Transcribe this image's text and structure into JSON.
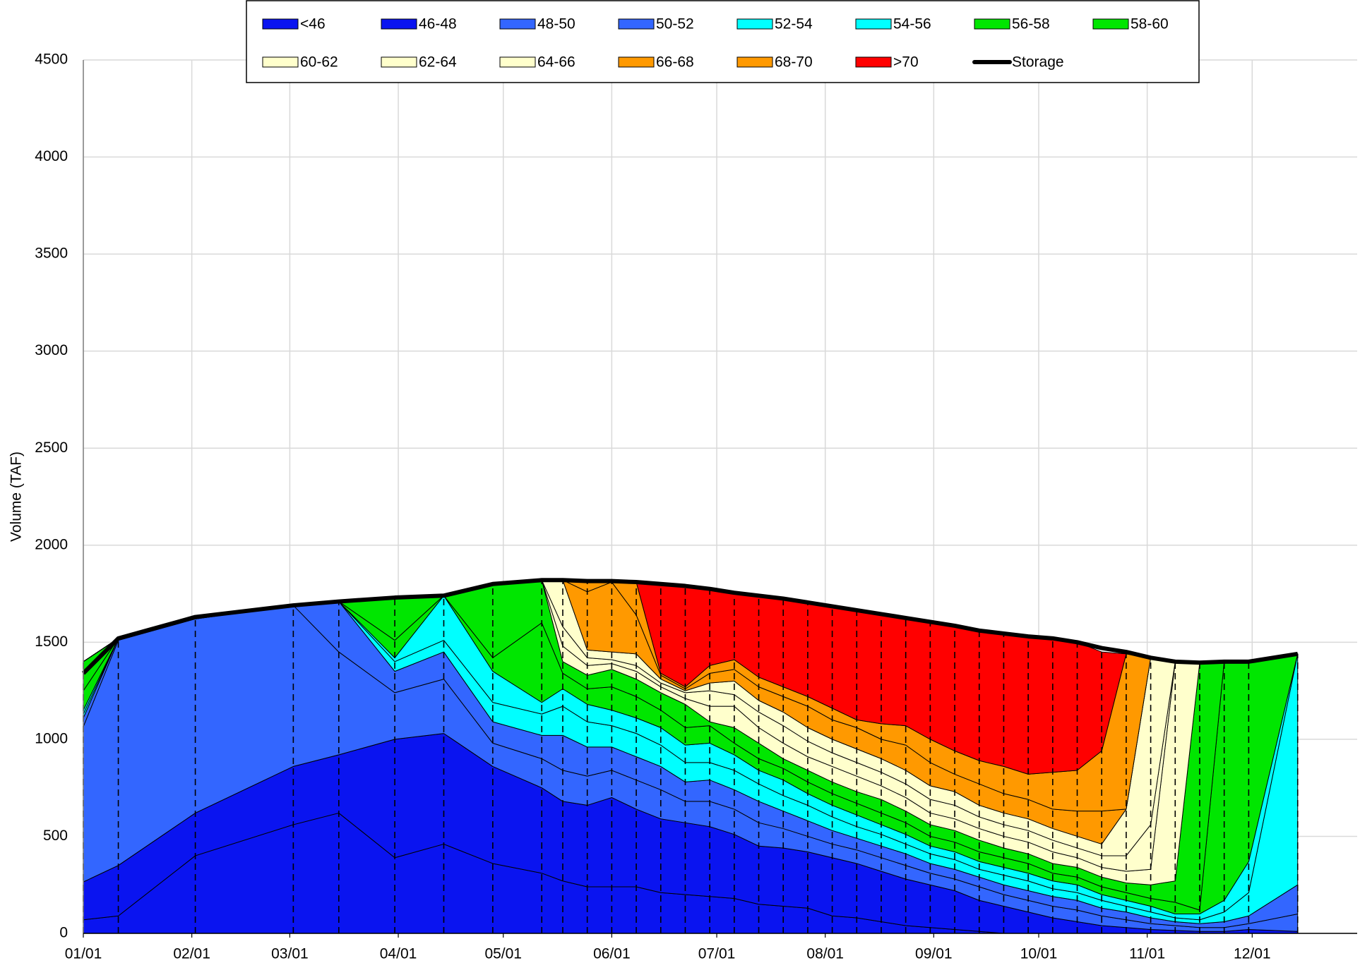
{
  "chart_data": {
    "type": "stacked_area",
    "y_label": "Volume (TAF)",
    "x": [
      "01/01",
      "01/11",
      "02/02",
      "03/02",
      "03/15",
      "03/31",
      "04/14",
      "04/28",
      "05/12",
      "05/18",
      "05/25",
      "06/01",
      "06/08",
      "06/15",
      "06/22",
      "06/29",
      "07/06",
      "07/13",
      "07/20",
      "07/27",
      "08/03",
      "08/10",
      "08/17",
      "08/24",
      "08/31",
      "09/07",
      "09/14",
      "09/21",
      "09/28",
      "10/05",
      "10/12",
      "10/19",
      "10/26",
      "11/02",
      "11/09",
      "11/16",
      "11/23",
      "11/30",
      "12/14"
    ],
    "xlim": [
      "01/01",
      "12/31"
    ],
    "xticks": [
      "01/01",
      "02/01",
      "03/01",
      "04/01",
      "05/01",
      "06/01",
      "07/01",
      "08/01",
      "09/01",
      "10/01",
      "11/01",
      "12/01"
    ],
    "ylim": [
      0,
      4500
    ],
    "yticks": [
      0,
      500,
      1000,
      1500,
      2000,
      2500,
      3000,
      3500,
      4000,
      4500
    ],
    "grid": true,
    "legend": "top",
    "series": [
      {
        "name": "<46",
        "color": "#0a14f0",
        "values": [
          70,
          90,
          400,
          560,
          620,
          390,
          460,
          360,
          310,
          270,
          240,
          240,
          240,
          210,
          200,
          190,
          180,
          150,
          140,
          130,
          90,
          80,
          60,
          40,
          30,
          20,
          10,
          0,
          0,
          0,
          0,
          0,
          0,
          0,
          0,
          0,
          0,
          0,
          0
        ]
      },
      {
        "name": "46-48",
        "color": "#0a14f0",
        "values": [
          195,
          260,
          220,
          300,
          300,
          610,
          570,
          500,
          440,
          410,
          420,
          460,
          400,
          380,
          370,
          360,
          330,
          300,
          300,
          290,
          300,
          280,
          260,
          240,
          220,
          200,
          160,
          140,
          110,
          80,
          60,
          40,
          30,
          20,
          15,
          10,
          10,
          20,
          10
        ]
      },
      {
        "name": "48-50",
        "color": "#3366ff",
        "values": [
          800,
          1160,
          1000,
          830,
          530,
          240,
          280,
          120,
          150,
          160,
          150,
          140,
          150,
          150,
          110,
          130,
          130,
          120,
          100,
          80,
          70,
          70,
          70,
          70,
          60,
          60,
          70,
          60,
          60,
          60,
          60,
          50,
          40,
          30,
          25,
          20,
          20,
          30,
          90
        ]
      },
      {
        "name": "50-52",
        "color": "#3366ff",
        "values": [
          45,
          10,
          10,
          5,
          260,
          110,
          140,
          110,
          120,
          180,
          150,
          120,
          120,
          120,
          100,
          110,
          100,
          110,
          90,
          80,
          70,
          60,
          60,
          60,
          50,
          50,
          50,
          50,
          50,
          50,
          50,
          40,
          40,
          30,
          20,
          20,
          30,
          40,
          150
        ]
      },
      {
        "name": "52-54",
        "color": "#00ffff",
        "values": [
          20,
          0,
          0,
          0,
          0,
          50,
          60,
          100,
          110,
          150,
          130,
          110,
          120,
          110,
          100,
          90,
          100,
          90,
          80,
          80,
          70,
          60,
          60,
          50,
          50,
          50,
          40,
          50,
          50,
          40,
          40,
          40,
          30,
          30,
          20,
          20,
          50,
          120,
          1190
        ]
      },
      {
        "name": "54-56",
        "color": "#00ffff",
        "values": [
          20,
          0,
          0,
          0,
          0,
          20,
          230,
          160,
          60,
          90,
          90,
          80,
          80,
          90,
          90,
          100,
          80,
          70,
          80,
          60,
          60,
          60,
          50,
          50,
          40,
          40,
          40,
          40,
          40,
          40,
          40,
          30,
          30,
          30,
          20,
          30,
          60,
          160,
          0
        ]
      },
      {
        "name": "56-58",
        "color": "#00e600",
        "values": [
          100,
          0,
          0,
          0,
          0,
          90,
          0,
          70,
          410,
          80,
          80,
          120,
          110,
          90,
          90,
          90,
          60,
          60,
          60,
          60,
          60,
          60,
          60,
          60,
          50,
          50,
          50,
          50,
          50,
          40,
          40,
          40,
          40,
          40,
          60,
          20,
          1230,
          1030,
          0
        ]
      },
      {
        "name": "58-60",
        "color": "#00e600",
        "values": [
          150,
          0,
          0,
          0,
          0,
          220,
          0,
          380,
          220,
          60,
          70,
          90,
          90,
          90,
          120,
          20,
          80,
          80,
          50,
          60,
          60,
          60,
          70,
          60,
          60,
          60,
          60,
          50,
          50,
          50,
          50,
          50,
          50,
          70,
          110,
          1275,
          0,
          0,
          0
        ]
      },
      {
        "name": "60-62",
        "color": "#ffffcc",
        "values": [
          0,
          0,
          0,
          0,
          0,
          0,
          0,
          0,
          0,
          80,
          50,
          30,
          40,
          30,
          30,
          80,
          110,
          80,
          80,
          70,
          80,
          80,
          70,
          70,
          60,
          60,
          60,
          60,
          60,
          60,
          50,
          50,
          60,
          80,
          1130,
          0,
          0,
          0,
          0
        ]
      },
      {
        "name": "62-64",
        "color": "#ffffcc",
        "values": [
          0,
          0,
          0,
          0,
          0,
          0,
          0,
          0,
          0,
          100,
          40,
          20,
          30,
          20,
          30,
          80,
          60,
          80,
          90,
          80,
          70,
          70,
          70,
          70,
          70,
          70,
          60,
          60,
          60,
          60,
          50,
          60,
          80,
          230,
          0,
          0,
          0,
          0,
          0
        ]
      },
      {
        "name": "64-66",
        "color": "#ffffcc",
        "values": [
          0,
          0,
          0,
          0,
          0,
          0,
          0,
          0,
          0,
          240,
          40,
          40,
          60,
          20,
          10,
          40,
          70,
          60,
          70,
          70,
          70,
          70,
          70,
          70,
          70,
          70,
          60,
          60,
          60,
          60,
          60,
          60,
          240,
          860,
          0,
          0,
          0,
          0,
          0
        ]
      },
      {
        "name": "66-68",
        "color": "#ff9900",
        "values": [
          0,
          0,
          0,
          0,
          0,
          0,
          0,
          0,
          0,
          0,
          300,
          360,
          200,
          20,
          10,
          50,
          60,
          70,
          80,
          110,
          100,
          110,
          100,
          130,
          120,
          90,
          110,
          100,
          100,
          100,
          130,
          170,
          0,
          0,
          0,
          0,
          0,
          0,
          0
        ]
      },
      {
        "name": "68-70",
        "color": "#ff9900",
        "values": [
          0,
          0,
          0,
          0,
          0,
          0,
          0,
          0,
          0,
          0,
          60,
          5,
          170,
          10,
          10,
          40,
          50,
          50,
          50,
          50,
          60,
          40,
          80,
          100,
          120,
          120,
          120,
          140,
          130,
          190,
          210,
          310,
          800,
          0,
          0,
          0,
          0,
          0,
          0
        ]
      },
      {
        "name": ">70",
        "color": "#ff0000",
        "values": [
          0,
          0,
          0,
          0,
          0,
          0,
          0,
          0,
          0,
          0,
          0,
          0,
          0,
          460,
          520,
          395,
          345,
          420,
          455,
          485,
          525,
          565,
          565,
          555,
          605,
          645,
          670,
          685,
          710,
          690,
          660,
          510,
          0,
          0,
          0,
          0,
          0,
          0,
          0
        ]
      },
      {
        "name": "Storage",
        "type": "line",
        "color": "#000000",
        "values": [
          1340,
          1520,
          1630,
          1690,
          1710,
          1730,
          1740,
          1800,
          1820,
          1820,
          1815,
          1815,
          1810,
          1800,
          1790,
          1775,
          1755,
          1740,
          1725,
          1705,
          1685,
          1665,
          1645,
          1625,
          1605,
          1585,
          1560,
          1545,
          1530,
          1520,
          1500,
          1470,
          1450,
          1420,
          1400,
          1395,
          1400,
          1400,
          1440
        ]
      }
    ]
  }
}
